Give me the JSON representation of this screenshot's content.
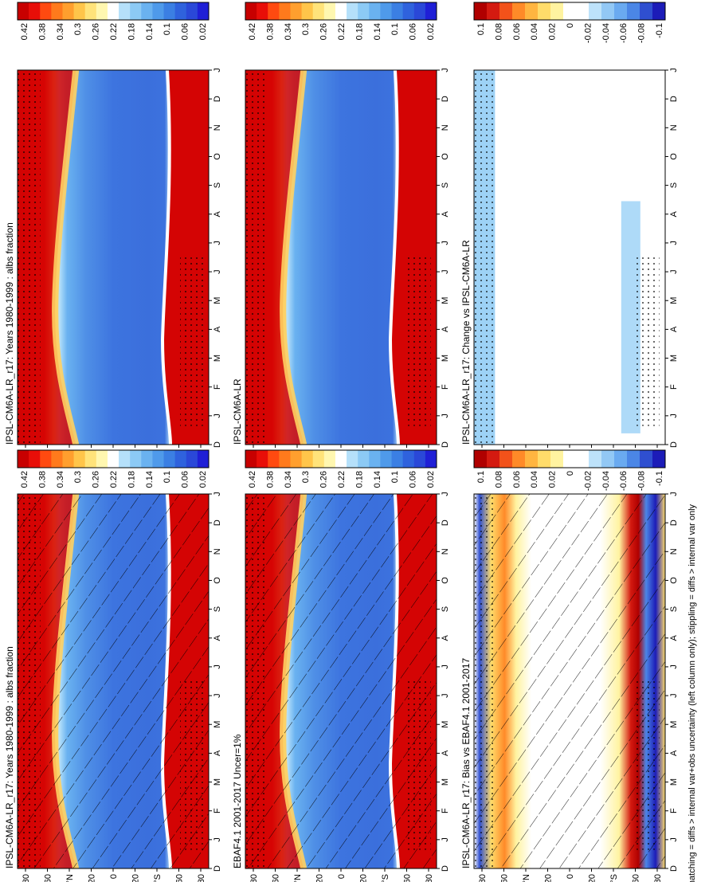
{
  "figure": {
    "footnote": "hatching = diffs > internal var+obs uncertainty (left column only); stippling = diffs > internal var only"
  },
  "colors": {
    "albedo_scale": [
      "#1f1fd6",
      "#2a48d8",
      "#2f62dd",
      "#3b7fe3",
      "#4f9aea",
      "#6ab2f0",
      "#8ccaf5",
      "#b5e0fa",
      "#ffffff",
      "#fff7b0",
      "#ffe37a",
      "#ffc54a",
      "#ff9f2e",
      "#ff7a1c",
      "#ff4a10",
      "#e80e08",
      "#c80000"
    ],
    "diff_scale": [
      "#1c1cb8",
      "#2f4fd0",
      "#4b86e6",
      "#6aaaf0",
      "#92c8f5",
      "#bde2fa",
      "#ffffff",
      "#ffffff",
      "#fff3a0",
      "#ffdc6a",
      "#ffb540",
      "#ff8a28",
      "#f2521a",
      "#d41a10",
      "#b00000"
    ]
  },
  "chart_data": [
    {
      "type": "heatmap",
      "panel": "top-right",
      "title": "IPSL-CM6A-LR_r17: Years 1980-1999 : albs fraction",
      "x_ticks": [
        "D",
        "J",
        "F",
        "M",
        "A",
        "M",
        "J",
        "J",
        "A",
        "S",
        "O",
        "N",
        "D",
        "J"
      ],
      "y_ticks": [
        "80",
        "60",
        "°N",
        "20",
        "0",
        "20",
        "°S",
        "60",
        "80"
      ],
      "colorbar_ticks": [
        "0.42",
        "0.38",
        "0.34",
        "0.3",
        "0.26",
        "0.22",
        "0.18",
        "0.14",
        "0.1",
        "0.06",
        "0.02"
      ],
      "hatching": false,
      "stippling": true
    },
    {
      "type": "heatmap",
      "panel": "middle-right",
      "title": "IPSL-CM6A-LR",
      "x_ticks": [
        "D",
        "J",
        "F",
        "M",
        "A",
        "M",
        "J",
        "J",
        "A",
        "S",
        "O",
        "N",
        "D",
        "J"
      ],
      "y_ticks": [
        "80",
        "60",
        "°N",
        "20",
        "0",
        "20",
        "°S",
        "60",
        "80"
      ],
      "colorbar_ticks": [
        "0.42",
        "0.38",
        "0.34",
        "0.3",
        "0.26",
        "0.22",
        "0.18",
        "0.14",
        "0.1",
        "0.06",
        "0.02"
      ],
      "hatching": false,
      "stippling": true
    },
    {
      "type": "heatmap",
      "panel": "bottom-right",
      "title": "IPSL-CM6A-LR_r17: Change vs IPSL-CM6A-LR",
      "x_ticks": [
        "D",
        "J",
        "F",
        "M",
        "A",
        "M",
        "J",
        "J",
        "A",
        "S",
        "O",
        "N",
        "D",
        "J"
      ],
      "y_ticks": [
        "80",
        "60",
        "°N",
        "20",
        "0",
        "20",
        "°S",
        "60",
        "80"
      ],
      "colorbar_ticks": [
        "0.1",
        "0.08",
        "0.06",
        "0.04",
        "0.02",
        "0",
        "-0.02",
        "-0.04",
        "-0.06",
        "-0.08",
        "-0.1"
      ],
      "hatching": false,
      "stippling": true
    },
    {
      "type": "heatmap",
      "panel": "top-left",
      "title": "IPSL-CM6A-LR_r17: Years 1980-1999 : albs fraction",
      "x_ticks": [
        "D",
        "J",
        "F",
        "M",
        "A",
        "M",
        "J",
        "J",
        "A",
        "S",
        "O",
        "N",
        "D",
        "J"
      ],
      "y_ticks": [
        "80",
        "60",
        "°N",
        "20",
        "0",
        "20",
        "°S",
        "60",
        "80"
      ],
      "colorbar_ticks": [
        "0.42",
        "0.38",
        "0.34",
        "0.3",
        "0.26",
        "0.22",
        "0.18",
        "0.14",
        "0.1",
        "0.06",
        "0.02"
      ],
      "hatching": true,
      "stippling": true
    },
    {
      "type": "heatmap",
      "panel": "middle-left",
      "title": "EBAF4.1 2001-2017 Uncer=1%",
      "x_ticks": [
        "D",
        "J",
        "F",
        "M",
        "A",
        "M",
        "J",
        "J",
        "A",
        "S",
        "O",
        "N",
        "D",
        "J"
      ],
      "y_ticks": [
        "80",
        "60",
        "°N",
        "20",
        "0",
        "20",
        "°S",
        "60",
        "80"
      ],
      "colorbar_ticks": [
        "0.42",
        "0.38",
        "0.34",
        "0.3",
        "0.26",
        "0.22",
        "0.18",
        "0.14",
        "0.1",
        "0.06",
        "0.02"
      ],
      "hatching": true,
      "stippling": true
    },
    {
      "type": "heatmap",
      "panel": "bottom-left",
      "title": "IPSL-CM6A-LR_r17: Bias vs EBAF4.1 2001-2017",
      "x_ticks": [
        "D",
        "J",
        "F",
        "M",
        "A",
        "M",
        "J",
        "J",
        "A",
        "S",
        "O",
        "N",
        "D",
        "J"
      ],
      "y_ticks": [
        "80",
        "60",
        "°N",
        "20",
        "0",
        "20",
        "°S",
        "60",
        "80"
      ],
      "colorbar_ticks": [
        "0.1",
        "0.08",
        "0.06",
        "0.04",
        "0.02",
        "0",
        "-0.02",
        "-0.04",
        "-0.06",
        "-0.08",
        "-0.1"
      ],
      "hatching": true,
      "stippling": true
    }
  ]
}
